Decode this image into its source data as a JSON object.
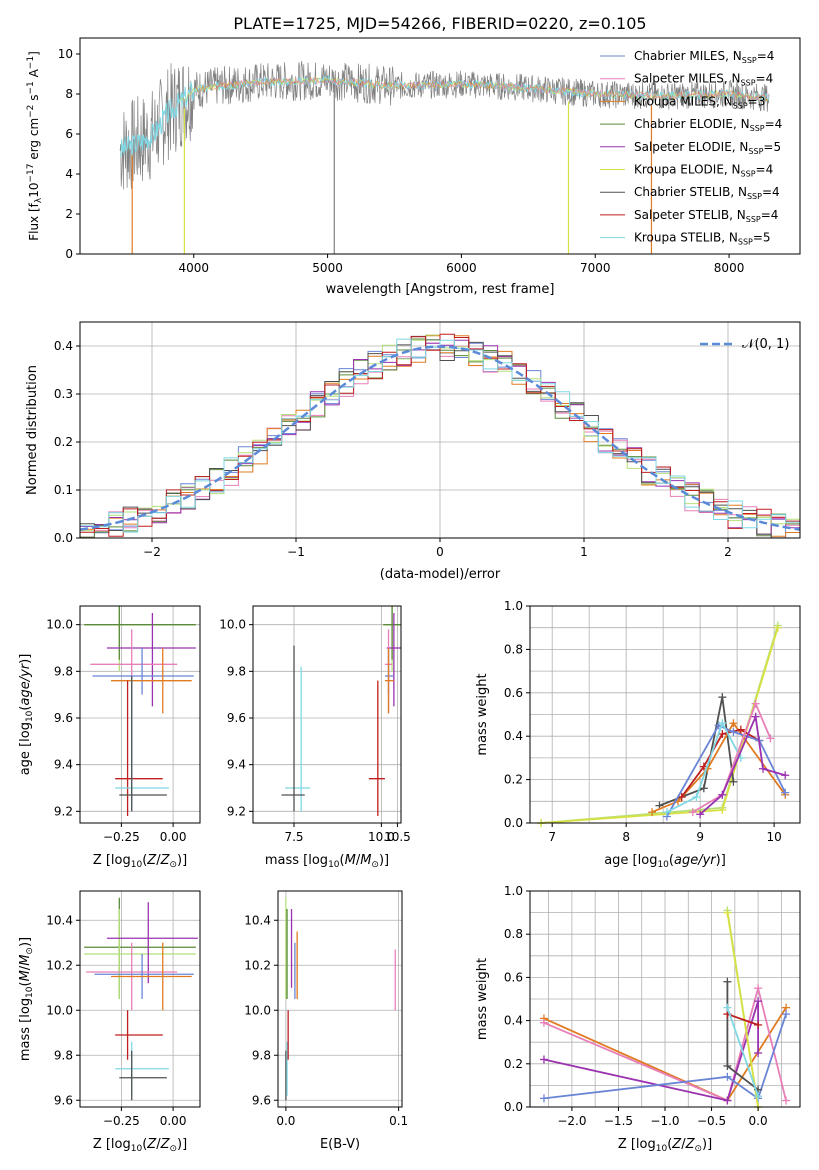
{
  "figure_title": "PLATE=1725, MJD=54266, FIBERID=0220, z=0.105",
  "colors": {
    "Chabrier MILES": "#6a85d6",
    "Salpeter MILES": "#e87fb8",
    "Kroupa MILES": "#e07b22",
    "Chabrier ELODIE": "#5a8a3a",
    "Salpeter ELODIE": "#9a32b0",
    "Kroupa ELODIE": "#d8e043",
    "Chabrier STELIB": "#505050",
    "Salpeter STELIB": "#bf1f1f",
    "Kroupa STELIB": "#7fd8e4",
    "Gaussian": "#5b8ad8",
    "Light green": "#b4e07a"
  },
  "chart_data": [
    {
      "id": "spectrum",
      "type": "line",
      "title": "PLATE=1725, MJD=54266, FIBERID=0220, z=0.105",
      "xlabel": "wavelength [Angstrom, rest frame]",
      "ylabel": "Flux [f_λ10^-17 erg cm^-2 s^-1 A^-1]",
      "xlim": [
        3150,
        8530
      ],
      "ylim": [
        0,
        10.8
      ],
      "xticks": [
        "4000",
        "5000",
        "6000",
        "7000",
        "8000"
      ],
      "yticks": [
        "0",
        "2",
        "4",
        "6",
        "8",
        "10"
      ],
      "grid": false,
      "legend_position": "right",
      "legend": [
        {
          "label": "Chabrier MILES, N",
          "sub": "SSP",
          "tail": "=4",
          "color": "#6a85d6"
        },
        {
          "label": "Salpeter MILES, N",
          "sub": "SSP",
          "tail": "=4",
          "color": "#e87fb8"
        },
        {
          "label": "Kroupa MILES, N",
          "sub": "SSP",
          "tail": "=3",
          "color": "#e07b22"
        },
        {
          "label": "Chabrier ELODIE, N",
          "sub": "SSP",
          "tail": "=4",
          "color": "#5a8a3a"
        },
        {
          "label": "Salpeter ELODIE, N",
          "sub": "SSP",
          "tail": "=5",
          "color": "#9a32b0"
        },
        {
          "label": "Kroupa ELODIE, N",
          "sub": "SSP",
          "tail": "=4",
          "color": "#d8e043"
        },
        {
          "label": "Chabrier STELIB, N",
          "sub": "SSP",
          "tail": "=4",
          "color": "#505050"
        },
        {
          "label": "Salpeter STELIB, N",
          "sub": "SSP",
          "tail": "=4",
          "color": "#bf1f1f"
        },
        {
          "label": "Kroupa STELIB, N",
          "sub": "SSP",
          "tail": "=5",
          "color": "#7fd8e4"
        }
      ],
      "data_color": "#808080",
      "model_color": "#7fd8e4",
      "continuum_anchors": [
        [
          3450,
          5.2
        ],
        [
          3600,
          5.6
        ],
        [
          3700,
          6.0
        ],
        [
          3800,
          7.0
        ],
        [
          3900,
          7.6
        ],
        [
          4000,
          8.2
        ],
        [
          4200,
          8.4
        ],
        [
          4500,
          8.6
        ],
        [
          5000,
          8.7
        ],
        [
          5500,
          8.4
        ],
        [
          6000,
          8.5
        ],
        [
          6500,
          8.3
        ],
        [
          7000,
          8.0
        ],
        [
          7500,
          7.9
        ],
        [
          8000,
          8.0
        ],
        [
          8300,
          7.8
        ]
      ]
    },
    {
      "id": "residual_histogram",
      "type": "line",
      "xlabel": "(data-model)/error",
      "ylabel": "Normed distribution",
      "xlim": [
        -2.5,
        2.5
      ],
      "ylim": [
        0,
        0.45
      ],
      "xticks": [
        "−2",
        "−1",
        "0",
        "1",
        "2"
      ],
      "yticks": [
        "0.0",
        "0.1",
        "0.2",
        "0.3",
        "0.4"
      ],
      "grid": true,
      "legend_position": "top-right",
      "legend_label": "𝒩(0, 1)",
      "bin_edges_start": -2.5,
      "bin_width": 0.1,
      "series_colors": [
        "#6a85d6",
        "#e87fb8",
        "#e07b22",
        "#5a8a3a",
        "#9a32b0",
        "#b4e07a",
        "#505050",
        "#bf1f1f",
        "#7fd8e4"
      ]
    },
    {
      "id": "age_vs_Z",
      "type": "scatter",
      "xlabel": "Z [log10(Z/Z⊙)]",
      "ylabel": "age [log10(age/yr)]",
      "xlim": [
        -0.45,
        0.13
      ],
      "ylim": [
        9.15,
        10.08
      ],
      "xticks": [
        [
          "−0.25",
          -0.25
        ],
        [
          "0.00",
          0.0
        ]
      ],
      "yticks": [
        [
          "9.2",
          9.2
        ],
        [
          "9.4",
          9.4
        ],
        [
          "9.6",
          9.6
        ],
        [
          "9.8",
          9.8
        ],
        [
          "10.0",
          10.0
        ]
      ],
      "grid": true,
      "points": [
        {
          "color": "#b4e07a",
          "x": -0.26,
          "y": 10.0,
          "xlo": -0.43,
          "xhi": 0.11,
          "ylo": 9.8,
          "yhi": 10.11
        },
        {
          "color": "#5a8a3a",
          "x": -0.26,
          "y": 10.0,
          "xlo": -0.43,
          "xhi": 0.11,
          "ylo": 9.85,
          "yhi": 10.08
        },
        {
          "color": "#9a32b0",
          "x": -0.1,
          "y": 9.9,
          "xlo": -0.32,
          "xhi": 0.11,
          "ylo": 9.65,
          "yhi": 10.05
        },
        {
          "color": "#e87fb8",
          "x": -0.2,
          "y": 9.83,
          "xlo": -0.4,
          "xhi": 0.02,
          "ylo": 9.62,
          "yhi": 9.98
        },
        {
          "color": "#6a85d6",
          "x": -0.15,
          "y": 9.78,
          "xlo": -0.39,
          "xhi": 0.1,
          "ylo": 9.7,
          "yhi": 9.9
        },
        {
          "color": "#e07b22",
          "x": -0.05,
          "y": 9.76,
          "xlo": -0.3,
          "xhi": 0.09,
          "ylo": 9.62,
          "yhi": 9.9
        },
        {
          "color": "#bf1f1f",
          "x": -0.22,
          "y": 9.34,
          "xlo": -0.28,
          "xhi": -0.05,
          "ylo": 9.18,
          "yhi": 9.76
        },
        {
          "color": "#7fd8e4",
          "x": -0.2,
          "y": 9.3,
          "xlo": -0.28,
          "xhi": -0.02,
          "ylo": 9.2,
          "yhi": 9.78
        },
        {
          "color": "#505050",
          "x": -0.2,
          "y": 9.27,
          "xlo": -0.26,
          "xhi": -0.03,
          "ylo": 9.2,
          "yhi": 9.78
        }
      ]
    },
    {
      "id": "age_vs_mass",
      "type": "scatter",
      "xlabel": "mass [log10(M/M⊙)]",
      "ylabel": "",
      "xlim": [
        6.4,
        10.55
      ],
      "ylim": [
        9.15,
        10.08
      ],
      "xticks": [
        [
          "7.5",
          7.5
        ],
        [
          "10.0",
          10.0
        ],
        [
          "10.5",
          10.5
        ]
      ],
      "xtick_positions": [
        7.55,
        10.0,
        10.45
      ],
      "yticks": [
        [
          "9.2",
          9.2
        ],
        [
          "9.4",
          9.4
        ],
        [
          "9.6",
          9.6
        ],
        [
          "9.8",
          9.8
        ],
        [
          "10.0",
          10.0
        ]
      ],
      "grid": true,
      "points": [
        {
          "color": "#b4e07a",
          "x": 10.3,
          "y": 10.0,
          "xlo": 10.05,
          "xhi": 10.55,
          "ylo": 9.8,
          "yhi": 10.11
        },
        {
          "color": "#5a8a3a",
          "x": 10.3,
          "y": 10.0,
          "xlo": 10.05,
          "xhi": 10.55,
          "ylo": 9.85,
          "yhi": 10.08
        },
        {
          "color": "#9a32b0",
          "x": 10.35,
          "y": 9.9,
          "xlo": 10.15,
          "xhi": 10.55,
          "ylo": 9.65,
          "yhi": 10.05
        },
        {
          "color": "#e87fb8",
          "x": 10.2,
          "y": 9.83,
          "xlo": 10.1,
          "xhi": 10.3,
          "ylo": 9.62,
          "yhi": 9.98
        },
        {
          "color": "#6a85d6",
          "x": 10.2,
          "y": 9.78,
          "xlo": 10.1,
          "xhi": 10.35,
          "ylo": 9.7,
          "yhi": 9.9
        },
        {
          "color": "#e07b22",
          "x": 10.2,
          "y": 9.76,
          "xlo": 10.1,
          "xhi": 10.35,
          "ylo": 9.62,
          "yhi": 9.9
        },
        {
          "color": "#bf1f1f",
          "x": 9.9,
          "y": 9.34,
          "xlo": 9.65,
          "xhi": 10.1,
          "ylo": 9.18,
          "yhi": 9.76
        },
        {
          "color": "#7fd8e4",
          "x": 7.75,
          "y": 9.3,
          "xlo": 7.3,
          "xhi": 8.0,
          "ylo": 9.2,
          "yhi": 9.82
        },
        {
          "color": "#505050",
          "x": 7.55,
          "y": 9.27,
          "xlo": 7.2,
          "xhi": 7.85,
          "ylo": 9.2,
          "yhi": 9.91
        }
      ]
    },
    {
      "id": "mass_weight_vs_age",
      "type": "line",
      "xlabel": "age [log10(age/yr)]",
      "ylabel": "mass weight",
      "xlim": [
        6.7,
        10.35
      ],
      "ylim": [
        0,
        1.0
      ],
      "xticks": [
        "7",
        "8",
        "9",
        "10"
      ],
      "yticks": [
        "0.0",
        "0.2",
        "0.4",
        "0.6",
        "0.8",
        "1.0"
      ],
      "grid": true,
      "series": [
        {
          "color": "#b4e07a",
          "x": [
            6.85,
            9.3,
            10.05
          ],
          "y": [
            0.0,
            0.07,
            0.91
          ]
        },
        {
          "color": "#d8e043",
          "x": [
            6.85,
            9.3,
            10.05
          ],
          "y": [
            0.0,
            0.06,
            0.9
          ]
        },
        {
          "color": "#505050",
          "x": [
            8.45,
            8.75,
            9.05,
            9.3,
            9.45
          ],
          "y": [
            0.08,
            0.12,
            0.16,
            0.58,
            0.19
          ]
        },
        {
          "color": "#e07b22",
          "x": [
            8.35,
            8.7,
            9.1,
            9.45,
            10.15
          ],
          "y": [
            0.05,
            0.1,
            0.25,
            0.46,
            0.13
          ]
        },
        {
          "color": "#bf1f1f",
          "x": [
            8.75,
            9.05,
            9.3,
            9.55,
            9.8
          ],
          "y": [
            0.12,
            0.26,
            0.41,
            0.43,
            0.38
          ]
        },
        {
          "color": "#6a85d6",
          "x": [
            8.55,
            9.25,
            9.45,
            9.8,
            10.15
          ],
          "y": [
            0.03,
            0.45,
            0.42,
            0.38,
            0.14
          ]
        },
        {
          "color": "#7fd8e4",
          "x": [
            8.55,
            8.95,
            9.3,
            9.55
          ],
          "y": [
            0.05,
            0.12,
            0.46,
            0.3
          ]
        },
        {
          "color": "#e87fb8",
          "x": [
            8.9,
            9.3,
            9.75,
            9.95
          ],
          "y": [
            0.05,
            0.13,
            0.55,
            0.39
          ]
        },
        {
          "color": "#9a32b0",
          "x": [
            9.0,
            9.3,
            9.75,
            9.85,
            10.15
          ],
          "y": [
            0.04,
            0.13,
            0.49,
            0.25,
            0.22
          ]
        }
      ]
    },
    {
      "id": "mass_vs_Z",
      "type": "scatter",
      "xlabel": "Z [log10(Z/Z⊙)]",
      "ylabel": "mass [log10(M/M⊙)]",
      "xlim": [
        -0.45,
        0.13
      ],
      "ylim": [
        9.57,
        10.53
      ],
      "xticks": [
        [
          "−0.25",
          -0.25
        ],
        [
          "0.00",
          0.0
        ]
      ],
      "yticks": [
        [
          "9.6",
          9.6
        ],
        [
          "9.8",
          9.8
        ],
        [
          "10.0",
          10.0
        ],
        [
          "10.2",
          10.2
        ],
        [
          "10.4",
          10.4
        ]
      ],
      "grid": true,
      "points": [
        {
          "color": "#5a8a3a",
          "x": -0.26,
          "y": 10.28,
          "xlo": -0.43,
          "xhi": 0.11,
          "ylo": 10.05,
          "yhi": 10.5
        },
        {
          "color": "#b4e07a",
          "x": -0.26,
          "y": 10.25,
          "xlo": -0.43,
          "xhi": 0.11,
          "ylo": 10.05,
          "yhi": 10.45
        },
        {
          "color": "#9a32b0",
          "x": -0.12,
          "y": 10.32,
          "xlo": -0.32,
          "xhi": 0.12,
          "ylo": 10.12,
          "yhi": 10.48
        },
        {
          "color": "#e87fb8",
          "x": -0.2,
          "y": 10.17,
          "xlo": -0.42,
          "xhi": 0.02,
          "ylo": 10.0,
          "yhi": 10.3
        },
        {
          "color": "#6a85d6",
          "x": -0.15,
          "y": 10.16,
          "xlo": -0.38,
          "xhi": 0.1,
          "ylo": 10.05,
          "yhi": 10.25
        },
        {
          "color": "#e07b22",
          "x": -0.05,
          "y": 10.15,
          "xlo": -0.3,
          "xhi": 0.09,
          "ylo": 10.0,
          "yhi": 10.3
        },
        {
          "color": "#bf1f1f",
          "x": -0.22,
          "y": 9.89,
          "xlo": -0.28,
          "xhi": -0.05,
          "ylo": 9.78,
          "yhi": 10.0
        },
        {
          "color": "#7fd8e4",
          "x": -0.2,
          "y": 9.74,
          "xlo": -0.28,
          "xhi": -0.02,
          "ylo": 9.62,
          "yhi": 9.86
        },
        {
          "color": "#505050",
          "x": -0.2,
          "y": 9.7,
          "xlo": -0.26,
          "xhi": -0.03,
          "ylo": 9.6,
          "yhi": 9.82
        }
      ]
    },
    {
      "id": "mass_vs_ebv",
      "type": "scatter",
      "xlabel": "E(B-V)",
      "ylabel": "",
      "xlim": [
        -0.007,
        0.103
      ],
      "ylim": [
        9.57,
        10.53
      ],
      "xticks": [
        [
          "0.0",
          0.0
        ],
        [
          "0.1",
          0.1
        ]
      ],
      "yticks": [
        [
          "9.6",
          9.6
        ],
        [
          "9.8",
          9.8
        ],
        [
          "10.0",
          10.0
        ],
        [
          "10.2",
          10.2
        ],
        [
          "10.4",
          10.4
        ]
      ],
      "grid": true,
      "vlines": [
        {
          "color": "#b4e07a",
          "x": 0.0,
          "ylo": 10.05,
          "yhi": 10.5
        },
        {
          "color": "#5a8a3a",
          "x": 0.001,
          "ylo": 10.05,
          "yhi": 10.45
        },
        {
          "color": "#505050",
          "x": 0.0,
          "ylo": 9.6,
          "yhi": 9.82
        },
        {
          "color": "#7fd8e4",
          "x": 0.001,
          "ylo": 9.62,
          "yhi": 9.86
        },
        {
          "color": "#bf1f1f",
          "x": 0.002,
          "ylo": 9.78,
          "yhi": 10.0
        },
        {
          "color": "#9a32b0",
          "x": 0.005,
          "ylo": 10.1,
          "yhi": 10.45
        },
        {
          "color": "#6a85d6",
          "x": 0.008,
          "ylo": 10.05,
          "yhi": 10.3
        },
        {
          "color": "#e07b22",
          "x": 0.01,
          "ylo": 10.05,
          "yhi": 10.35
        },
        {
          "color": "#e87fb8",
          "x": 0.097,
          "ylo": 10.0,
          "yhi": 10.27
        }
      ]
    },
    {
      "id": "mass_weight_vs_Z",
      "type": "line",
      "xlabel": "Z [log10(Z/Z⊙)]",
      "ylabel": "mass weight",
      "xlim": [
        -2.45,
        0.45
      ],
      "ylim": [
        0,
        1.0
      ],
      "xticks": [
        "−2.0",
        "−1.5",
        "−1.0",
        "−0.5",
        "0.0"
      ],
      "yticks": [
        "0.0",
        "0.2",
        "0.4",
        "0.6",
        "0.8",
        "1.0"
      ],
      "grid": true,
      "series": [
        {
          "color": "#e07b22",
          "x": [
            -2.3,
            -0.33,
            0.3
          ],
          "y": [
            0.41,
            0.03,
            0.46
          ]
        },
        {
          "color": "#e87fb8",
          "x": [
            -2.3,
            -0.33,
            0.0,
            0.3
          ],
          "y": [
            0.39,
            0.03,
            0.55,
            0.03
          ]
        },
        {
          "color": "#9a32b0",
          "x": [
            -2.3,
            -0.33,
            0.0,
            0.0
          ],
          "y": [
            0.22,
            0.03,
            0.49,
            0.25
          ]
        },
        {
          "color": "#6a85d6",
          "x": [
            -2.3,
            -0.33,
            0.0,
            0.3
          ],
          "y": [
            0.04,
            0.14,
            0.04,
            0.43
          ]
        },
        {
          "color": "#b4e07a",
          "x": [
            -0.33,
            0.0
          ],
          "y": [
            0.91,
            0.0
          ]
        },
        {
          "color": "#d8e043",
          "x": [
            -0.33,
            0.0
          ],
          "y": [
            0.9,
            0.0
          ]
        },
        {
          "color": "#505050",
          "x": [
            -0.33,
            -0.33,
            0.0
          ],
          "y": [
            0.58,
            0.19,
            0.08
          ]
        },
        {
          "color": "#bf1f1f",
          "x": [
            -0.33,
            0.0
          ],
          "y": [
            0.43,
            0.38
          ]
        },
        {
          "color": "#7fd8e4",
          "x": [
            -0.33,
            0.0
          ],
          "y": [
            0.46,
            0.05
          ]
        }
      ]
    }
  ]
}
